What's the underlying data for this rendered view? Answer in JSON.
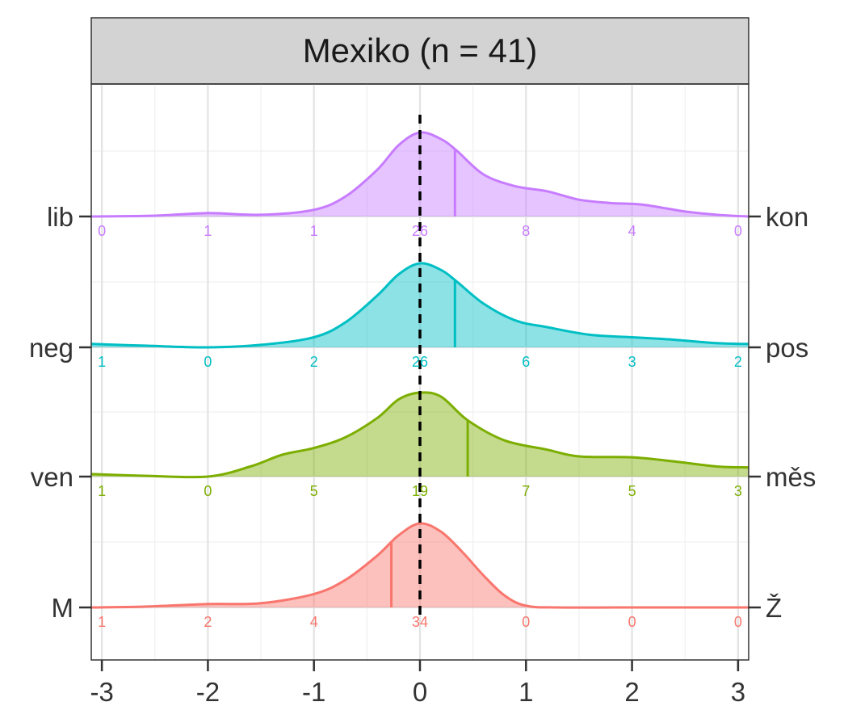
{
  "chart_data": {
    "type": "ridgeline",
    "title": "Mexiko (n = 41)",
    "x_ticks": [
      -3,
      -2,
      -1,
      0,
      1,
      2,
      3
    ],
    "x_tick_labels": [
      "-3",
      "-2",
      "-1",
      "0",
      "1",
      "2",
      "3"
    ],
    "xlim": [
      -3.1,
      3.1
    ],
    "reference_line": 0,
    "grid": true,
    "rows": [
      {
        "left_label": "lib",
        "right_label": "kon",
        "color": "#C77CFF",
        "mean": 0.33,
        "counts": [
          0,
          1,
          1,
          26,
          8,
          4,
          0
        ],
        "density": [
          [
            -3.1,
            0.0
          ],
          [
            -2.5,
            0.01
          ],
          [
            -2.0,
            0.04
          ],
          [
            -1.5,
            0.02
          ],
          [
            -1.0,
            0.08
          ],
          [
            -0.7,
            0.24
          ],
          [
            -0.4,
            0.56
          ],
          [
            -0.2,
            0.85
          ],
          [
            0.0,
            1.0
          ],
          [
            0.2,
            0.92
          ],
          [
            0.35,
            0.78
          ],
          [
            0.6,
            0.5
          ],
          [
            0.9,
            0.36
          ],
          [
            1.2,
            0.3
          ],
          [
            1.5,
            0.2
          ],
          [
            1.8,
            0.16
          ],
          [
            2.1,
            0.14
          ],
          [
            2.5,
            0.06
          ],
          [
            2.8,
            0.02
          ],
          [
            3.1,
            0.0
          ]
        ]
      },
      {
        "left_label": "neg",
        "right_label": "pos",
        "color": "#00BFC4",
        "mean": 0.33,
        "counts": [
          1,
          0,
          2,
          26,
          6,
          3,
          2
        ],
        "density": [
          [
            -3.1,
            0.04
          ],
          [
            -2.6,
            0.02
          ],
          [
            -2.0,
            0.0
          ],
          [
            -1.5,
            0.03
          ],
          [
            -1.0,
            0.12
          ],
          [
            -0.7,
            0.3
          ],
          [
            -0.4,
            0.62
          ],
          [
            -0.2,
            0.87
          ],
          [
            0.0,
            1.0
          ],
          [
            0.2,
            0.92
          ],
          [
            0.35,
            0.78
          ],
          [
            0.6,
            0.52
          ],
          [
            0.9,
            0.32
          ],
          [
            1.2,
            0.24
          ],
          [
            1.6,
            0.15
          ],
          [
            2.0,
            0.12
          ],
          [
            2.4,
            0.09
          ],
          [
            2.8,
            0.05
          ],
          [
            3.1,
            0.04
          ]
        ]
      },
      {
        "left_label": "ven",
        "right_label": "měs",
        "color": "#7CAE00",
        "mean": 0.45,
        "counts": [
          1,
          0,
          5,
          19,
          7,
          5,
          3
        ],
        "density": [
          [
            -3.1,
            0.03
          ],
          [
            -2.6,
            0.01
          ],
          [
            -2.0,
            0.0
          ],
          [
            -1.6,
            0.12
          ],
          [
            -1.3,
            0.26
          ],
          [
            -1.0,
            0.34
          ],
          [
            -0.7,
            0.47
          ],
          [
            -0.4,
            0.7
          ],
          [
            -0.2,
            0.92
          ],
          [
            0.0,
            1.0
          ],
          [
            0.2,
            0.95
          ],
          [
            0.45,
            0.67
          ],
          [
            0.8,
            0.43
          ],
          [
            1.2,
            0.32
          ],
          [
            1.5,
            0.24
          ],
          [
            2.0,
            0.23
          ],
          [
            2.4,
            0.18
          ],
          [
            2.8,
            0.12
          ],
          [
            3.1,
            0.11
          ]
        ]
      },
      {
        "left_label": "M",
        "right_label": "Ž",
        "color": "#F8766D",
        "mean": -0.27,
        "counts": [
          1,
          2,
          4,
          34,
          0,
          0,
          0
        ],
        "density": [
          [
            -3.1,
            0.0
          ],
          [
            -2.6,
            0.01
          ],
          [
            -2.0,
            0.04
          ],
          [
            -1.5,
            0.05
          ],
          [
            -1.0,
            0.16
          ],
          [
            -0.7,
            0.33
          ],
          [
            -0.4,
            0.62
          ],
          [
            -0.2,
            0.86
          ],
          [
            0.0,
            1.0
          ],
          [
            0.2,
            0.9
          ],
          [
            0.4,
            0.66
          ],
          [
            0.6,
            0.38
          ],
          [
            0.8,
            0.14
          ],
          [
            1.0,
            0.02
          ],
          [
            1.3,
            0.0
          ],
          [
            2.0,
            0.0
          ],
          [
            3.1,
            0.0
          ]
        ]
      }
    ]
  }
}
